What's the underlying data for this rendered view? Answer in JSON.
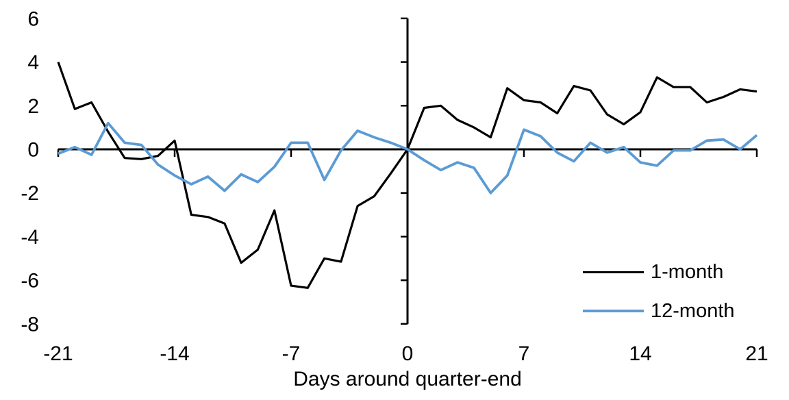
{
  "chart_data": {
    "type": "line",
    "title": "",
    "xlabel": "Days around quarter-end",
    "ylabel": "",
    "grid": false,
    "legend_position": "lower-right-inside",
    "xlim": [
      -21,
      21
    ],
    "ylim": [
      -8,
      6
    ],
    "x_ticks": [
      -21,
      -14,
      -7,
      0,
      7,
      14,
      21
    ],
    "y_ticks": [
      6,
      4,
      2,
      0,
      -2,
      -4,
      -6,
      -8
    ],
    "axis_color": "#000000",
    "x": [
      -21,
      -20,
      -19,
      -18,
      -17,
      -16,
      -15,
      -14,
      -13,
      -12,
      -11,
      -10,
      -9,
      -8,
      -7,
      -6,
      -5,
      -4,
      -3,
      -2,
      -1,
      0,
      1,
      2,
      3,
      4,
      5,
      6,
      7,
      8,
      9,
      10,
      11,
      12,
      13,
      14,
      15,
      16,
      17,
      18,
      19,
      20,
      21
    ],
    "series": [
      {
        "name": "1-month",
        "color": "#000000",
        "values": [
          4.0,
          1.85,
          2.15,
          0.8,
          -0.4,
          -0.45,
          -0.3,
          0.4,
          -3.0,
          -3.1,
          -3.4,
          -5.2,
          -4.6,
          -2.8,
          -6.25,
          -6.35,
          -5.0,
          -5.15,
          -2.6,
          -2.15,
          -1.1,
          0.0,
          1.9,
          2.0,
          1.35,
          1.0,
          0.55,
          2.8,
          2.25,
          2.15,
          1.65,
          2.9,
          2.7,
          1.6,
          1.15,
          1.7,
          3.3,
          2.85,
          2.85,
          2.15,
          2.4,
          2.75,
          2.65
        ]
      },
      {
        "name": "12-month",
        "color": "#5B9BD5",
        "values": [
          -0.2,
          0.1,
          -0.25,
          1.2,
          0.3,
          0.2,
          -0.7,
          -1.2,
          -1.6,
          -1.25,
          -1.9,
          -1.15,
          -1.5,
          -0.8,
          0.3,
          0.3,
          -1.4,
          -0.05,
          0.85,
          0.55,
          0.3,
          0.0,
          -0.5,
          -0.95,
          -0.6,
          -0.85,
          -2.0,
          -1.2,
          0.9,
          0.6,
          -0.15,
          -0.55,
          0.3,
          -0.15,
          0.1,
          -0.6,
          -0.75,
          -0.05,
          -0.05,
          0.4,
          0.45,
          0.0,
          0.65
        ]
      }
    ]
  }
}
